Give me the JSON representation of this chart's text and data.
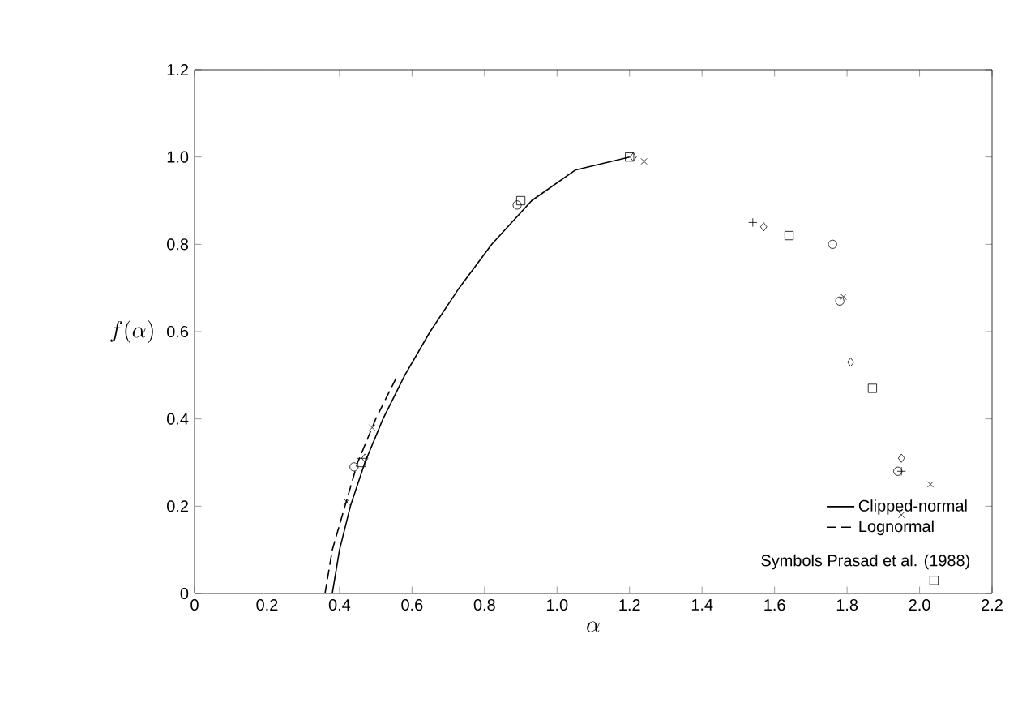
{
  "chart_data": {
    "type": "line",
    "xlabel": "\\alpha",
    "ylabel": "f(\\alpha)",
    "xlim": [
      0,
      2.2
    ],
    "ylim": [
      0,
      1.2
    ],
    "xticks": [
      {
        "value": 0,
        "label": "0"
      },
      {
        "value": 0.2,
        "label": "0.2"
      },
      {
        "value": 0.4,
        "label": "0.4"
      },
      {
        "value": 0.6,
        "label": "0.6"
      },
      {
        "value": 0.8,
        "label": "0.8"
      },
      {
        "value": 1.0,
        "label": "1.0"
      },
      {
        "value": 1.2,
        "label": "1.2"
      },
      {
        "value": 1.4,
        "label": "1.4"
      },
      {
        "value": 1.6,
        "label": "1.6"
      },
      {
        "value": 1.8,
        "label": "1.8"
      },
      {
        "value": 2.0,
        "label": "2.0"
      },
      {
        "value": 2.2,
        "label": "2.2"
      }
    ],
    "yticks": [
      {
        "value": 0,
        "label": "0"
      },
      {
        "value": 0.2,
        "label": "0.2"
      },
      {
        "value": 0.4,
        "label": "0.4"
      },
      {
        "value": 0.6,
        "label": "0.6"
      },
      {
        "value": 0.8,
        "label": "0.8"
      },
      {
        "value": 1.0,
        "label": "1.0"
      },
      {
        "value": 1.2,
        "label": "1.2"
      }
    ],
    "legend": "bottom right",
    "series": [
      {
        "name": "Clipped-normal",
        "line_style": "solid",
        "color": "#000000",
        "x": [
          0.38,
          0.4,
          0.43,
          0.47,
          0.52,
          0.58,
          0.65,
          0.73,
          0.82,
          0.93,
          1.05,
          1.2
        ],
        "values": [
          0,
          0.1,
          0.2,
          0.3,
          0.4,
          0.5,
          0.6,
          0.7,
          0.8,
          0.9,
          0.97,
          1.0
        ]
      },
      {
        "name": "Lognormal",
        "line_style": "dashed",
        "color": "#000000",
        "x": [
          0.36,
          0.38,
          0.415,
          0.45,
          0.5,
          0.56
        ],
        "values": [
          0,
          0.1,
          0.2,
          0.3,
          0.4,
          0.5
        ]
      },
      {
        "type": "scatter",
        "marker": "circle",
        "color": "#000000",
        "x": [
          0.44,
          0.89,
          1.76,
          1.78,
          1.94
        ],
        "values": [
          0.29,
          0.89,
          0.8,
          0.67,
          0.28
        ]
      },
      {
        "type": "scatter",
        "marker": "square",
        "color": "#000000",
        "x": [
          0.46,
          0.9,
          1.2,
          1.64,
          1.87,
          2.04
        ],
        "values": [
          0.3,
          0.9,
          1.0,
          0.82,
          0.47,
          0.03
        ]
      },
      {
        "type": "scatter",
        "marker": "diamond",
        "color": "#000000",
        "x": [
          0.47,
          1.21,
          1.57,
          1.81,
          1.95
        ],
        "values": [
          0.31,
          1.0,
          0.84,
          0.53,
          0.31
        ]
      },
      {
        "type": "scatter",
        "marker": "cross",
        "color": "#000000",
        "x": [
          0.42,
          0.49,
          1.24,
          1.79,
          2.03,
          1.95
        ],
        "values": [
          0.21,
          0.38,
          0.99,
          0.68,
          0.25,
          0.18
        ]
      },
      {
        "type": "scatter",
        "marker": "plus",
        "color": "#000000",
        "x": [
          1.54,
          1.95
        ],
        "values": [
          0.85,
          0.28
        ]
      }
    ],
    "annotations": [
      "Symbols  Prasad et al. (1988)"
    ]
  }
}
